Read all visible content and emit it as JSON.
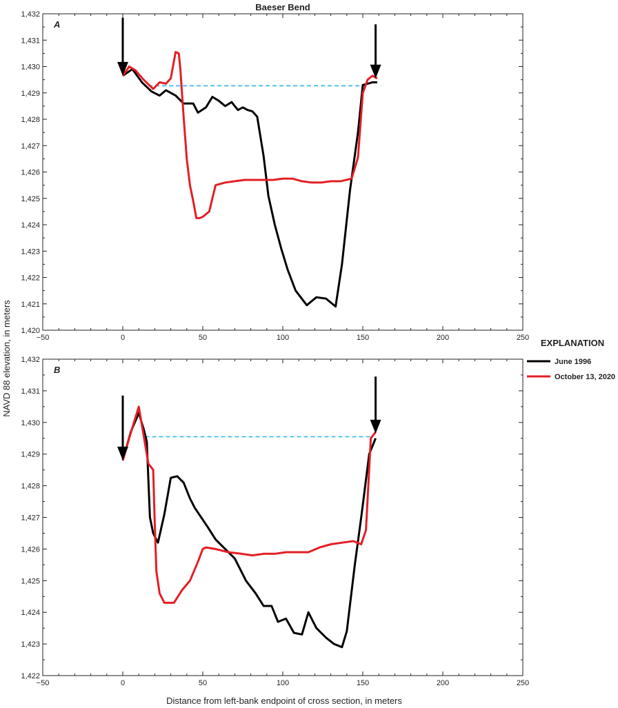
{
  "figure_title": "Baeser Bend",
  "ylabel": "NAVD 88 elevation, in meters",
  "xlabel": "Distance from left-bank endpoint of cross section, in meters",
  "legend": {
    "title": "EXPLANATION",
    "items": [
      {
        "label": "June 1996",
        "color": "#000000"
      },
      {
        "label": "October 13, 2020",
        "color": "#e31e24"
      }
    ]
  },
  "water_color": "#2bb3e6",
  "chart_data": [
    {
      "type": "line",
      "panel_label": "A",
      "xlim": [
        -50,
        250
      ],
      "ylim": [
        1420,
        1432
      ],
      "xticks": [
        -50,
        0,
        50,
        100,
        150,
        200,
        250
      ],
      "xtick_labels": [
        "−50",
        "0",
        "50",
        "100",
        "150",
        "200",
        "250"
      ],
      "yticks": [
        1420,
        1421,
        1422,
        1423,
        1424,
        1425,
        1426,
        1427,
        1428,
        1429,
        1430,
        1431,
        1432
      ],
      "ytick_labels": [
        "1,420",
        "1,421",
        "1,422",
        "1,423",
        "1,424",
        "1,425",
        "1,426",
        "1,427",
        "1,428",
        "1,429",
        "1,430",
        "1,431",
        "1,432"
      ],
      "grid": false,
      "series": [
        {
          "name": "June 1996",
          "color": "#000000",
          "x": [
            0,
            6,
            12,
            18,
            23,
            27,
            33,
            38,
            42,
            44,
            47,
            52,
            56,
            60,
            64,
            68,
            70,
            72,
            75,
            78,
            81,
            84,
            88,
            91,
            95,
            99,
            103,
            108,
            115,
            121,
            127,
            133,
            137,
            142,
            147,
            150,
            153,
            156,
            159
          ],
          "y": [
            1429.65,
            1429.9,
            1429.4,
            1429.05,
            1428.9,
            1429.1,
            1428.9,
            1428.6,
            1428.6,
            1428.6,
            1428.25,
            1428.45,
            1428.85,
            1428.7,
            1428.5,
            1428.65,
            1428.5,
            1428.35,
            1428.45,
            1428.35,
            1428.3,
            1428.1,
            1426.6,
            1425.1,
            1424.0,
            1423.1,
            1422.3,
            1421.5,
            1420.95,
            1421.25,
            1421.2,
            1420.9,
            1422.5,
            1425.3,
            1427.5,
            1429.3,
            1429.35,
            1429.4,
            1429.4
          ]
        },
        {
          "name": "October 13, 2020",
          "color": "#e31e24",
          "x": [
            0,
            4,
            8,
            13,
            19,
            23,
            27,
            30,
            33,
            35,
            36,
            38,
            40,
            42,
            44,
            46,
            48,
            50,
            54,
            58,
            64,
            70,
            76,
            82,
            88,
            94,
            100,
            106,
            112,
            118,
            124,
            130,
            136,
            143,
            147,
            150,
            153,
            156,
            159
          ],
          "y": [
            1429.65,
            1430.0,
            1429.85,
            1429.5,
            1429.15,
            1429.4,
            1429.35,
            1429.55,
            1430.55,
            1430.5,
            1429.9,
            1428.1,
            1426.5,
            1425.5,
            1424.9,
            1424.25,
            1424.25,
            1424.3,
            1424.5,
            1425.5,
            1425.6,
            1425.65,
            1425.7,
            1425.7,
            1425.7,
            1425.7,
            1425.75,
            1425.75,
            1425.65,
            1425.6,
            1425.6,
            1425.65,
            1425.65,
            1425.75,
            1426.55,
            1429.0,
            1429.5,
            1429.65,
            1429.55
          ]
        },
        {
          "name": "",
          "color": "#2bb3e6",
          "dashed": true,
          "x": [
            16,
            152
          ],
          "y": [
            1429.27,
            1429.27
          ]
        }
      ],
      "annotations": [
        {
          "type": "arrow",
          "x": 0,
          "y_top": 1431.85,
          "y_tip": 1429.65
        },
        {
          "type": "arrow",
          "x": 158,
          "y_top": 1431.6,
          "y_tip": 1429.55
        }
      ]
    },
    {
      "type": "line",
      "panel_label": "B",
      "xlim": [
        -50,
        250
      ],
      "ylim": [
        1422,
        1432
      ],
      "xticks": [
        -50,
        0,
        50,
        100,
        150,
        200,
        250
      ],
      "xtick_labels": [
        "−50",
        "0",
        "50",
        "100",
        "150",
        "200",
        "250"
      ],
      "yticks": [
        1422,
        1423,
        1424,
        1425,
        1426,
        1427,
        1428,
        1429,
        1430,
        1431,
        1432
      ],
      "ytick_labels": [
        "1,422",
        "1,423",
        "1,424",
        "1,425",
        "1,426",
        "1,427",
        "1,428",
        "1,429",
        "1,430",
        "1,431",
        "1,432"
      ],
      "grid": false,
      "series": [
        {
          "name": "June 1996",
          "color": "#000000",
          "x": [
            0,
            5,
            10,
            13,
            15,
            17,
            19,
            22,
            26,
            30,
            34,
            38,
            42,
            45,
            49,
            53,
            58,
            64,
            70,
            77,
            83,
            88,
            93,
            97,
            102,
            107,
            112,
            116,
            121,
            127,
            132,
            137,
            140,
            145,
            149,
            154,
            158
          ],
          "y": [
            1428.8,
            1429.7,
            1430.3,
            1429.8,
            1429.4,
            1427.0,
            1426.5,
            1426.2,
            1427.1,
            1428.25,
            1428.3,
            1428.1,
            1427.6,
            1427.3,
            1427.0,
            1426.7,
            1426.3,
            1426.0,
            1425.7,
            1425.0,
            1424.6,
            1424.2,
            1424.2,
            1423.7,
            1423.8,
            1423.35,
            1423.3,
            1424.0,
            1423.5,
            1423.2,
            1423.0,
            1422.9,
            1423.4,
            1425.5,
            1427.0,
            1429.0,
            1429.5
          ]
        },
        {
          "name": "October 13, 2020",
          "color": "#e31e24",
          "x": [
            0,
            4,
            7,
            10,
            13,
            16,
            19,
            20,
            21,
            23,
            26,
            32,
            37,
            42,
            47,
            50,
            52,
            58,
            66,
            74,
            81,
            88,
            95,
            102,
            109,
            116,
            123,
            130,
            137,
            144,
            149,
            152,
            155,
            158
          ],
          "y": [
            1428.8,
            1429.5,
            1430.0,
            1430.5,
            1429.6,
            1428.7,
            1428.5,
            1426.8,
            1425.3,
            1424.6,
            1424.3,
            1424.3,
            1424.7,
            1425.0,
            1425.6,
            1426.0,
            1426.05,
            1426.0,
            1425.9,
            1425.85,
            1425.8,
            1425.85,
            1425.85,
            1425.9,
            1425.9,
            1425.9,
            1426.05,
            1426.15,
            1426.2,
            1426.25,
            1426.15,
            1426.6,
            1429.5,
            1429.7
          ]
        },
        {
          "name": "",
          "color": "#2bb3e6",
          "dashed": true,
          "x": [
            14,
            155
          ],
          "y": [
            1429.55,
            1429.55
          ]
        }
      ],
      "annotations": [
        {
          "type": "arrow",
          "x": 0,
          "y_top": 1430.85,
          "y_tip": 1428.8
        },
        {
          "type": "arrow",
          "x": 158,
          "y_top": 1431.45,
          "y_tip": 1429.65
        }
      ]
    }
  ]
}
